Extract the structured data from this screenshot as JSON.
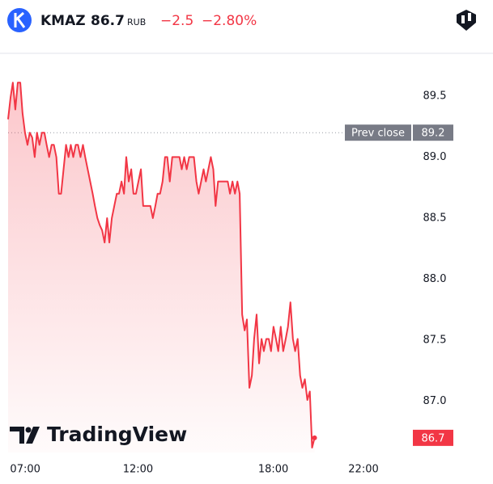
{
  "header": {
    "symbol": "KMAZ",
    "price": "86.7",
    "currency": "RUB",
    "change": "−2.5",
    "change_percent": "−2.80%"
  },
  "branding": "TradingView",
  "chart_data": {
    "type": "line",
    "color": "#f23645",
    "x": [
      6.24,
      6.35,
      6.45,
      6.56,
      6.67,
      6.78,
      6.88,
      6.99,
      7.1,
      7.2,
      7.31,
      7.42,
      7.52,
      7.63,
      7.74,
      7.85,
      7.95,
      8.06,
      8.17,
      8.27,
      8.38,
      8.49,
      8.59,
      8.7,
      8.81,
      8.92,
      9.02,
      9.13,
      9.24,
      9.34,
      9.45,
      9.56,
      9.66,
      9.77,
      9.88,
      9.99,
      10.09,
      10.2,
      10.31,
      10.41,
      10.52,
      10.63,
      10.73,
      10.84,
      10.95,
      11.06,
      11.16,
      11.27,
      11.38,
      11.48,
      11.59,
      11.7,
      11.8,
      11.91,
      12.02,
      12.13,
      12.23,
      12.34,
      12.45,
      12.55,
      12.66,
      12.77,
      12.87,
      12.98,
      13.09,
      13.2,
      13.3,
      13.41,
      13.52,
      13.62,
      13.73,
      13.84,
      13.94,
      14.05,
      14.16,
      14.27,
      14.37,
      14.48,
      14.59,
      14.69,
      14.8,
      14.91,
      15.01,
      15.12,
      15.23,
      15.34,
      15.44,
      15.55,
      15.66,
      15.76,
      15.87,
      15.98,
      16.08,
      16.19,
      16.3,
      16.41,
      16.51,
      16.62,
      16.73,
      16.83,
      16.94,
      17.05,
      17.15,
      17.26,
      17.37,
      17.48,
      17.58,
      17.69,
      17.8,
      17.9,
      18.01,
      18.12,
      18.22,
      18.33,
      18.44,
      18.55,
      18.65,
      18.76,
      18.87,
      18.97,
      19.08,
      19.19,
      19.29,
      19.4,
      19.51,
      19.62,
      19.72,
      19.83
    ],
    "values": [
      89.31,
      89.49,
      89.61,
      89.39,
      89.61,
      89.61,
      89.36,
      89.2,
      89.1,
      89.2,
      89.16,
      89.0,
      89.2,
      89.1,
      89.2,
      89.2,
      89.1,
      89.0,
      89.1,
      89.1,
      89.0,
      88.7,
      88.7,
      88.9,
      89.1,
      89.0,
      89.1,
      89.0,
      89.1,
      89.1,
      89.0,
      89.1,
      89.0,
      88.9,
      88.8,
      88.7,
      88.6,
      88.5,
      88.44,
      88.4,
      88.3,
      88.5,
      88.3,
      88.5,
      88.6,
      88.7,
      88.7,
      88.8,
      88.7,
      89.0,
      88.8,
      88.9,
      88.7,
      88.7,
      88.8,
      88.9,
      88.6,
      88.6,
      88.6,
      88.6,
      88.5,
      88.6,
      88.7,
      88.7,
      88.8,
      89.0,
      89.0,
      88.8,
      89.0,
      89.0,
      89.0,
      89.0,
      88.9,
      89.0,
      88.9,
      89.0,
      89.0,
      89.0,
      88.8,
      88.7,
      88.8,
      88.9,
      88.8,
      88.9,
      89.0,
      88.9,
      88.6,
      88.8,
      88.8,
      88.8,
      88.8,
      88.8,
      88.7,
      88.8,
      88.7,
      88.8,
      88.7,
      87.71,
      87.58,
      87.67,
      87.11,
      87.21,
      87.51,
      87.71,
      87.31,
      87.51,
      87.41,
      87.51,
      87.51,
      87.41,
      87.61,
      87.51,
      87.41,
      87.61,
      87.41,
      87.51,
      87.61,
      87.81,
      87.51,
      87.41,
      87.51,
      87.21,
      87.11,
      87.18,
      87.01,
      87.08,
      86.62,
      86.7
    ],
    "xlim": [
      6.24,
      23.83
    ],
    "ylim": [
      86.58,
      89.85
    ],
    "xticks": [
      {
        "value": 7,
        "label": "07:00"
      },
      {
        "value": 12,
        "label": "12:00"
      },
      {
        "value": 18,
        "label": "18:00"
      },
      {
        "value": 22,
        "label": "22:00"
      }
    ],
    "yticks": [
      89.5,
      {
        "value": 89,
        "label": "89.0"
      },
      88.5,
      {
        "value": 88,
        "label": "88.0"
      },
      87.5,
      {
        "value": 87,
        "label": "87.0"
      }
    ],
    "prev_close": {
      "label": "Prev close",
      "value": 89.2
    }
  }
}
